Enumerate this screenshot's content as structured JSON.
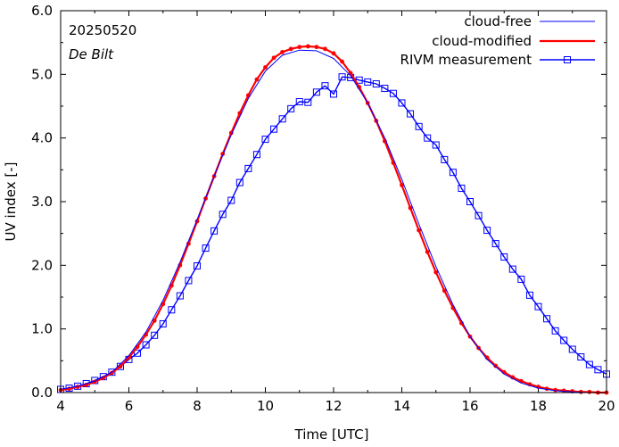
{
  "chart_data": {
    "type": "line",
    "title": "",
    "xlabel": "Time  [UTC]",
    "ylabel": "UV index  [-]",
    "xlim": [
      4,
      20
    ],
    "ylim": [
      0.0,
      6.0
    ],
    "x_ticks": [
      4,
      6,
      8,
      10,
      12,
      14,
      16,
      18,
      20
    ],
    "y_ticks": [
      "0.0",
      "1.0",
      "2.0",
      "3.0",
      "4.0",
      "5.0",
      "6.0"
    ],
    "annotations": {
      "date": "20250520",
      "location": "De Bilt"
    },
    "legend_position": "top-right",
    "series": [
      {
        "name": "cloud-free",
        "color": "#0000ff",
        "style": "line",
        "x": [
          4.0,
          4.5,
          5.0,
          5.5,
          6.0,
          6.5,
          7.0,
          7.5,
          8.0,
          8.5,
          9.0,
          9.5,
          10.0,
          10.5,
          11.0,
          11.5,
          12.0,
          12.5,
          13.0,
          13.5,
          14.0,
          14.5,
          15.0,
          15.5,
          16.0,
          16.5,
          17.0,
          17.5,
          18.0,
          18.5,
          19.0,
          19.5,
          20.0
        ],
        "y": [
          0.05,
          0.1,
          0.18,
          0.32,
          0.58,
          0.95,
          1.45,
          2.05,
          2.72,
          3.4,
          4.05,
          4.62,
          5.05,
          5.3,
          5.38,
          5.37,
          5.25,
          4.98,
          4.55,
          4.0,
          3.35,
          2.65,
          1.98,
          1.38,
          0.88,
          0.52,
          0.29,
          0.15,
          0.07,
          0.03,
          0.01,
          0.0,
          0.0
        ]
      },
      {
        "name": "cloud-modified",
        "color": "#ff0000",
        "style": "line-dots",
        "x": [
          4.0,
          4.25,
          4.5,
          4.75,
          5.0,
          5.25,
          5.5,
          5.75,
          6.0,
          6.25,
          6.5,
          6.75,
          7.0,
          7.25,
          7.5,
          7.75,
          8.0,
          8.25,
          8.5,
          8.75,
          9.0,
          9.25,
          9.5,
          9.75,
          10.0,
          10.25,
          10.5,
          10.75,
          11.0,
          11.25,
          11.5,
          11.75,
          12.0,
          12.25,
          12.5,
          12.75,
          13.0,
          13.25,
          13.5,
          13.75,
          14.0,
          14.25,
          14.5,
          14.75,
          15.0,
          15.25,
          15.5,
          15.75,
          16.0,
          16.25,
          16.5,
          16.75,
          17.0,
          17.25,
          17.5,
          17.75,
          18.0,
          18.25,
          18.5,
          18.75,
          19.0,
          19.25,
          19.5,
          19.75,
          20.0
        ],
        "y": [
          0.04,
          0.06,
          0.09,
          0.12,
          0.17,
          0.23,
          0.31,
          0.41,
          0.55,
          0.72,
          0.91,
          1.13,
          1.39,
          1.68,
          2.0,
          2.34,
          2.69,
          3.05,
          3.4,
          3.75,
          4.08,
          4.39,
          4.67,
          4.92,
          5.11,
          5.26,
          5.35,
          5.4,
          5.43,
          5.44,
          5.43,
          5.4,
          5.33,
          5.2,
          5.02,
          4.8,
          4.55,
          4.27,
          3.95,
          3.61,
          3.26,
          2.9,
          2.55,
          2.21,
          1.89,
          1.6,
          1.33,
          1.09,
          0.88,
          0.7,
          0.55,
          0.42,
          0.32,
          0.24,
          0.18,
          0.13,
          0.09,
          0.06,
          0.04,
          0.03,
          0.02,
          0.01,
          0.01,
          0.0,
          0.0
        ]
      },
      {
        "name": "RIVM measurement",
        "color": "#0000ff",
        "style": "line-squares",
        "x": [
          4.0,
          4.25,
          4.5,
          4.75,
          5.0,
          5.25,
          5.5,
          5.75,
          6.0,
          6.25,
          6.5,
          6.75,
          7.0,
          7.25,
          7.5,
          7.75,
          8.0,
          8.25,
          8.5,
          8.75,
          9.0,
          9.25,
          9.5,
          9.75,
          10.0,
          10.25,
          10.5,
          10.75,
          11.0,
          11.25,
          11.5,
          11.75,
          12.0,
          12.25,
          12.5,
          12.75,
          13.0,
          13.25,
          13.5,
          13.75,
          14.0,
          14.25,
          14.5,
          14.75,
          15.0,
          15.25,
          15.5,
          15.75,
          16.0,
          16.25,
          16.5,
          16.75,
          17.0,
          17.25,
          17.5,
          17.75,
          18.0,
          18.25,
          18.5,
          18.75,
          19.0,
          19.25,
          19.5,
          19.75,
          20.0
        ],
        "y": [
          0.05,
          0.07,
          0.1,
          0.14,
          0.19,
          0.25,
          0.32,
          0.41,
          0.52,
          0.62,
          0.75,
          0.9,
          1.08,
          1.3,
          1.52,
          1.76,
          1.99,
          2.27,
          2.54,
          2.8,
          3.02,
          3.3,
          3.52,
          3.74,
          3.98,
          4.14,
          4.3,
          4.46,
          4.57,
          4.56,
          4.72,
          4.82,
          4.69,
          4.96,
          4.95,
          4.91,
          4.88,
          4.85,
          4.78,
          4.7,
          4.55,
          4.38,
          4.18,
          4.0,
          3.89,
          3.66,
          3.46,
          3.21,
          3.0,
          2.78,
          2.55,
          2.34,
          2.13,
          1.94,
          1.78,
          1.53,
          1.35,
          1.16,
          0.97,
          0.82,
          0.68,
          0.56,
          0.44,
          0.36,
          0.29
        ]
      }
    ]
  }
}
